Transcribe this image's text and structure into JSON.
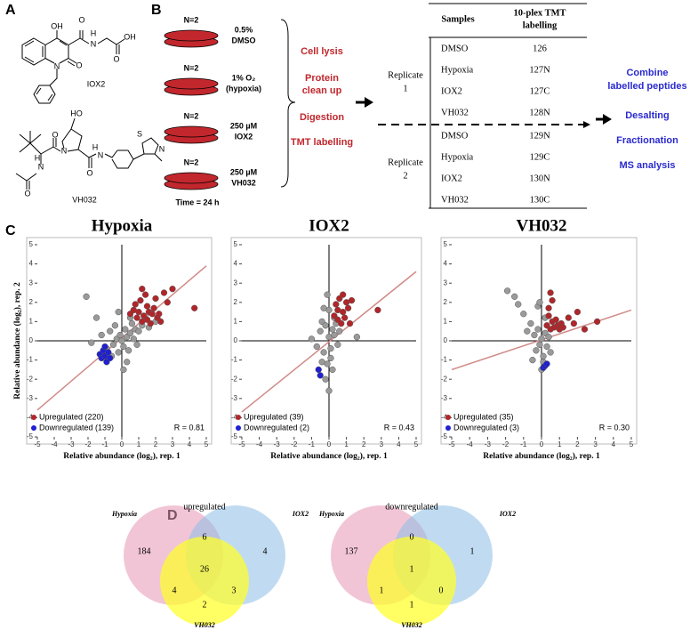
{
  "panel_a": {
    "label": "A",
    "molecules": [
      {
        "name": "IOX2",
        "atoms": [
          "OH",
          "O",
          "O",
          "N",
          "H",
          "O",
          "OH",
          "N"
        ]
      },
      {
        "name": "VH032",
        "atoms": [
          "HO",
          "N",
          "O",
          "H",
          "N",
          "O",
          "H",
          "N",
          "O",
          "S",
          "N"
        ]
      }
    ]
  },
  "panel_b": {
    "label": "B",
    "dishes": [
      {
        "n": "N=2",
        "condition": [
          "0.5%",
          "DMSO"
        ]
      },
      {
        "n": "N=2",
        "condition": [
          "1% O₂",
          "(hypoxia)"
        ]
      },
      {
        "n": "N=2",
        "condition": [
          "250 µM",
          "IOX2"
        ]
      },
      {
        "n": "N=2",
        "condition": [
          "250 µM",
          "VH032"
        ]
      }
    ],
    "time": "Time = 24 h",
    "steps": [
      [
        "Cell lysis"
      ],
      [
        "Protein",
        "clean up"
      ],
      [
        "Digestion"
      ],
      [
        "TMT labelling"
      ]
    ],
    "table": {
      "header": [
        [
          "Samples"
        ],
        [
          "10-plex TMT",
          "labelling"
        ]
      ],
      "replicates": [
        {
          "label": [
            "Replicate",
            "1"
          ],
          "rows": [
            [
              "DMSO",
              "126"
            ],
            [
              "Hypoxia",
              "127N"
            ],
            [
              "IOX2",
              "127C"
            ],
            [
              "VH032",
              "128N"
            ]
          ]
        },
        {
          "label": [
            "Replicate",
            "2"
          ],
          "rows": [
            [
              "DMSO",
              "129N"
            ],
            [
              "Hypoxia",
              "129C"
            ],
            [
              "IOX2",
              "130N"
            ],
            [
              "VH032",
              "130C"
            ]
          ]
        }
      ]
    },
    "post_steps": [
      [
        "Combine",
        "labelled peptides"
      ],
      [
        "Desalting"
      ],
      [
        "Fractionation"
      ],
      [
        "MS analysis"
      ]
    ]
  },
  "panel_c": {
    "label": "C"
  },
  "chart_data": [
    {
      "type": "scatter",
      "title": "Hypoxia",
      "xlabel": "Relative abundance (log₂), rep. 1",
      "ylabel": "Relative abundance (log₂), rep. 2",
      "xlim": [
        -5,
        5
      ],
      "ylim": [
        -5,
        5
      ],
      "xticks": [
        -5,
        -4,
        -3,
        -2,
        -1,
        0,
        1,
        2,
        3,
        4,
        5
      ],
      "yticks": [
        -5,
        -4,
        -3,
        -2,
        -1,
        0,
        1,
        2,
        3,
        4,
        5
      ],
      "annotation": "R = 0.81",
      "fit_line": {
        "color": "#d08a86",
        "x": [
          -5,
          5
        ],
        "y": [
          -3.6,
          3.9
        ]
      },
      "series": [
        {
          "color": "#9a9a9a",
          "x": [
            -2.1,
            -1.5,
            -1.2,
            -0.9,
            -0.7,
            -0.5,
            -0.4,
            -0.3,
            -0.2,
            -0.1,
            0,
            0.1,
            0.2,
            0.3,
            0.4,
            0.5,
            0.6,
            0.7,
            0.8,
            1.0,
            1.2,
            -0.6,
            0.3,
            0.9,
            0.5,
            -0.2,
            1.6,
            2.0,
            -1.8,
            0.1
          ],
          "values": [
            2.3,
            1.2,
            0.3,
            -0.4,
            0.5,
            -0.2,
            0.8,
            0.1,
            -0.6,
            0.3,
            0,
            -0.3,
            0.6,
            0.2,
            -0.5,
            0.4,
            0.9,
            0.1,
            0.6,
            0.5,
            0.8,
            -0.8,
            -1.1,
            -0.2,
            1.2,
            1.5,
            0.7,
            1.0,
            -0.1,
            -1.5
          ]
        },
        {
          "name": "Upregulated (220)",
          "color": "#b0262a",
          "x": [
            0.5,
            0.7,
            0.9,
            1.0,
            1.1,
            1.2,
            1.3,
            1.4,
            1.5,
            1.6,
            1.7,
            1.8,
            1.9,
            2.0,
            2.1,
            2.2,
            2.5,
            2.7,
            3.0,
            4.3,
            0.8,
            1.2,
            1.5,
            2.3
          ],
          "values": [
            1.4,
            1.6,
            1.2,
            1.5,
            2.1,
            1.0,
            1.3,
            2.4,
            1.1,
            1.5,
            0.9,
            1.4,
            1.7,
            2.2,
            1.2,
            1.4,
            2.5,
            2.0,
            2.7,
            1.7,
            1.9,
            2.7,
            1.8,
            1.0
          ]
        },
        {
          "name": "Downregulated (139)",
          "color": "#2020d0",
          "x": [
            -1.3,
            -1.2,
            -1.1,
            -1.0,
            -0.9,
            -0.8,
            -1.0,
            -0.7
          ],
          "values": [
            -0.7,
            -0.9,
            -0.5,
            -0.8,
            -1.1,
            -0.6,
            -0.3,
            -0.9
          ]
        }
      ]
    },
    {
      "type": "scatter",
      "title": "IOX2",
      "xlabel": "Relative abundance (log₂), rep. 1",
      "xlim": [
        -5,
        5
      ],
      "ylim": [
        -5,
        5
      ],
      "xticks": [
        -5,
        -4,
        -3,
        -2,
        -1,
        0,
        1,
        2,
        3,
        4,
        5
      ],
      "yticks": [
        -5,
        -4,
        -3,
        -2,
        -1,
        0,
        1,
        2,
        3,
        4,
        5
      ],
      "annotation": "R = 0.43",
      "fit_line": {
        "color": "#d08a86",
        "x": [
          -5,
          5
        ],
        "y": [
          -3.7,
          3.6
        ]
      },
      "series": [
        {
          "color": "#9a9a9a",
          "x": [
            -1.0,
            -0.7,
            -0.5,
            -0.4,
            -0.3,
            -0.2,
            -0.1,
            0,
            0.1,
            0.2,
            0.3,
            -0.2,
            0,
            0.1,
            0.4,
            -0.3,
            0.2,
            -0.1,
            0.6,
            0.5,
            0,
            -0.4,
            0.3,
            1.6
          ],
          "values": [
            0.1,
            -0.3,
            0.5,
            1.0,
            -0.6,
            0.8,
            -1.2,
            0.2,
            -0.4,
            0.6,
            0.3,
            -2.0,
            1.6,
            -0.9,
            0.9,
            1.7,
            -1.5,
            2.4,
            0.5,
            -0.2,
            -2.6,
            -1.1,
            1.2,
            0.2
          ]
        },
        {
          "name": "Upregulated (39)",
          "color": "#b0262a",
          "x": [
            0.3,
            0.4,
            0.5,
            0.6,
            0.7,
            0.8,
            0.9,
            1.0,
            1.1,
            1.2,
            0.5,
            0.8,
            2.8,
            1.3
          ],
          "values": [
            1.3,
            1.9,
            1.1,
            2.2,
            0.9,
            1.5,
            1.2,
            2.0,
            1.7,
            0.9,
            1.6,
            2.4,
            1.6,
            2.1
          ]
        },
        {
          "name": "Downregulated (2)",
          "color": "#2020d0",
          "x": [
            -0.6,
            -0.5
          ],
          "values": [
            -1.5,
            -1.8
          ]
        }
      ]
    },
    {
      "type": "scatter",
      "title": "VH032",
      "xlabel": "Relative abundance (log₂), rep. 1",
      "xlim": [
        -5,
        5
      ],
      "ylim": [
        -5,
        5
      ],
      "xticks": [
        -5,
        -4,
        -3,
        -2,
        -1,
        0,
        1,
        2,
        3,
        4,
        5
      ],
      "yticks": [
        -5,
        -4,
        -3,
        -2,
        -1,
        0,
        1,
        2,
        3,
        4,
        5
      ],
      "annotation": "R = 0.30",
      "fit_line": {
        "color": "#d08a86",
        "x": [
          -5,
          5
        ],
        "y": [
          -1.5,
          1.6
        ]
      },
      "series": [
        {
          "color": "#9a9a9a",
          "x": [
            -1.9,
            -1.5,
            -1.0,
            -0.6,
            -0.4,
            -0.3,
            -0.2,
            -0.1,
            0,
            0.1,
            0.2,
            0.3,
            -0.5,
            0.4,
            -0.2,
            0,
            0.2,
            -0.8,
            -1.3,
            0.1,
            -0.1,
            0.5
          ],
          "values": [
            2.6,
            2.3,
            1.4,
            0.9,
            0.3,
            -0.5,
            0.6,
            -0.2,
            0.1,
            -0.8,
            0.4,
            -0.3,
            -1.0,
            0.2,
            1.8,
            -1.5,
            1.2,
            0.5,
            1.9,
            -1.1,
            2.0,
            -0.6
          ]
        },
        {
          "name": "Upregulated (35)",
          "color": "#b0262a",
          "x": [
            0.3,
            0.4,
            0.5,
            0.6,
            0.7,
            0.8,
            0.9,
            1.0,
            1.1,
            1.2,
            1.5,
            1.8,
            2.0,
            2.4,
            3.1,
            0.5,
            0.4,
            0.6
          ],
          "values": [
            0.8,
            1.3,
            0.6,
            1.0,
            0.7,
            1.1,
            0.8,
            0.6,
            0.9,
            0.7,
            1.2,
            0.9,
            1.5,
            0.6,
            1.0,
            2.5,
            1.7,
            2.1
          ]
        },
        {
          "name": "Downregulated (3)",
          "color": "#2020d0",
          "x": [
            0.1,
            0.2,
            0.3
          ],
          "values": [
            -1.4,
            -1.3,
            -1.2
          ]
        }
      ]
    }
  ],
  "panel_d": {
    "label": "D",
    "venns": [
      {
        "title": "upregulated",
        "sets": [
          "Hypoxia",
          "IOX2",
          "VH032"
        ],
        "counts": [
          184,
          6,
          4,
          26,
          4,
          3,
          2
        ]
      },
      {
        "title": "downregulated",
        "sets": [
          "Hypoxia",
          "IOX2",
          "VH032"
        ],
        "counts": [
          137,
          0,
          1,
          1,
          1,
          0,
          1
        ]
      }
    ]
  }
}
